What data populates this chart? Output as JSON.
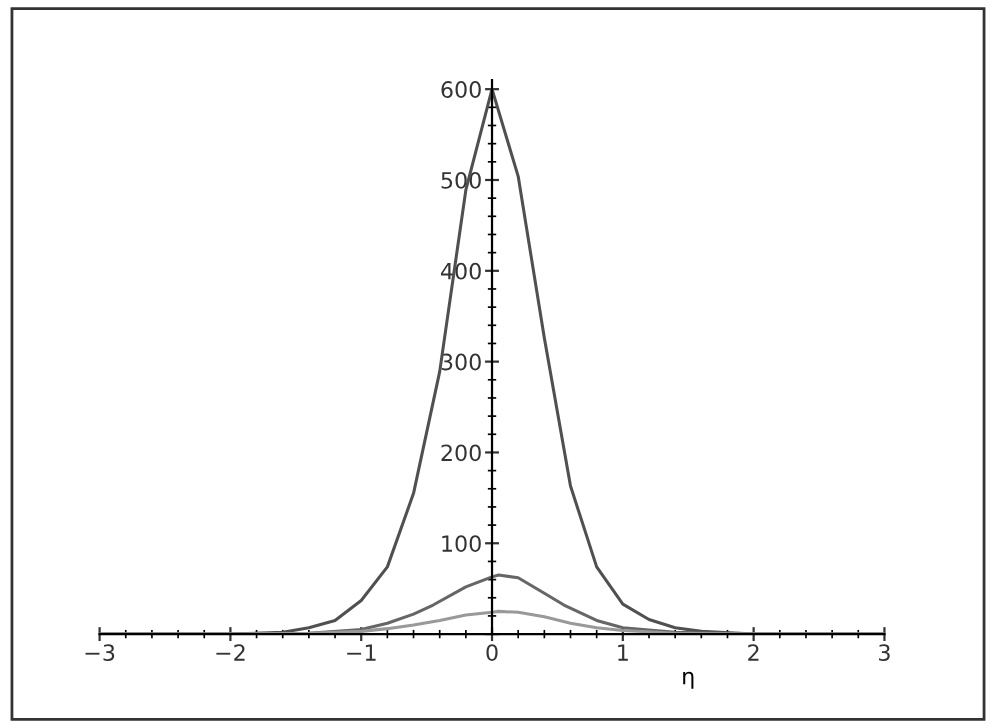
{
  "chart_data": {
    "type": "line",
    "xlabel": "η",
    "xlim": [
      -3,
      3
    ],
    "ylim": [
      0,
      610
    ],
    "xticks": [
      -3,
      -2,
      -1,
      0,
      1,
      2,
      3
    ],
    "yticks": [
      {
        "value": 0,
        "label": null
      },
      100,
      200,
      300,
      400,
      500,
      600
    ],
    "grid": false,
    "legend": false,
    "marker": "none",
    "line_style": "solid",
    "series": [
      {
        "color": "#505050",
        "x": [
          -3,
          -2,
          -1.6,
          -1.4,
          -1.2,
          -1,
          -0.8,
          -0.6,
          -0.4,
          -0.2,
          0,
          0.2,
          0.4,
          0.6,
          0.8,
          1,
          1.2,
          1.4,
          1.6,
          2,
          3
        ],
        "values": [
          0,
          0,
          2,
          7,
          15,
          37,
          74,
          155,
          289,
          489,
          600,
          504,
          326,
          163,
          74,
          33,
          16,
          7,
          3,
          0,
          0
        ]
      },
      {
        "color": "#666666",
        "x": [
          -3,
          -2,
          -1.4,
          -1,
          -0.8,
          -0.6,
          -0.45,
          -0.2,
          0,
          0.05,
          0.2,
          0.4,
          0.55,
          0.8,
          1,
          1.4,
          2,
          3
        ],
        "values": [
          0,
          0,
          1,
          5,
          12,
          22,
          32,
          52,
          63,
          65,
          62,
          45,
          32,
          15,
          7,
          2,
          0,
          0
        ]
      },
      {
        "color": "#999999",
        "x": [
          -3,
          -2,
          -1.4,
          -1,
          -0.8,
          -0.6,
          -0.4,
          -0.2,
          0,
          0.05,
          0.2,
          0.4,
          0.6,
          0.8,
          1,
          1.4,
          2,
          3
        ],
        "values": [
          0,
          0,
          1,
          3,
          6,
          10,
          15,
          21,
          24,
          25,
          24,
          19,
          12,
          7,
          4,
          1,
          0,
          0
        ]
      }
    ]
  }
}
